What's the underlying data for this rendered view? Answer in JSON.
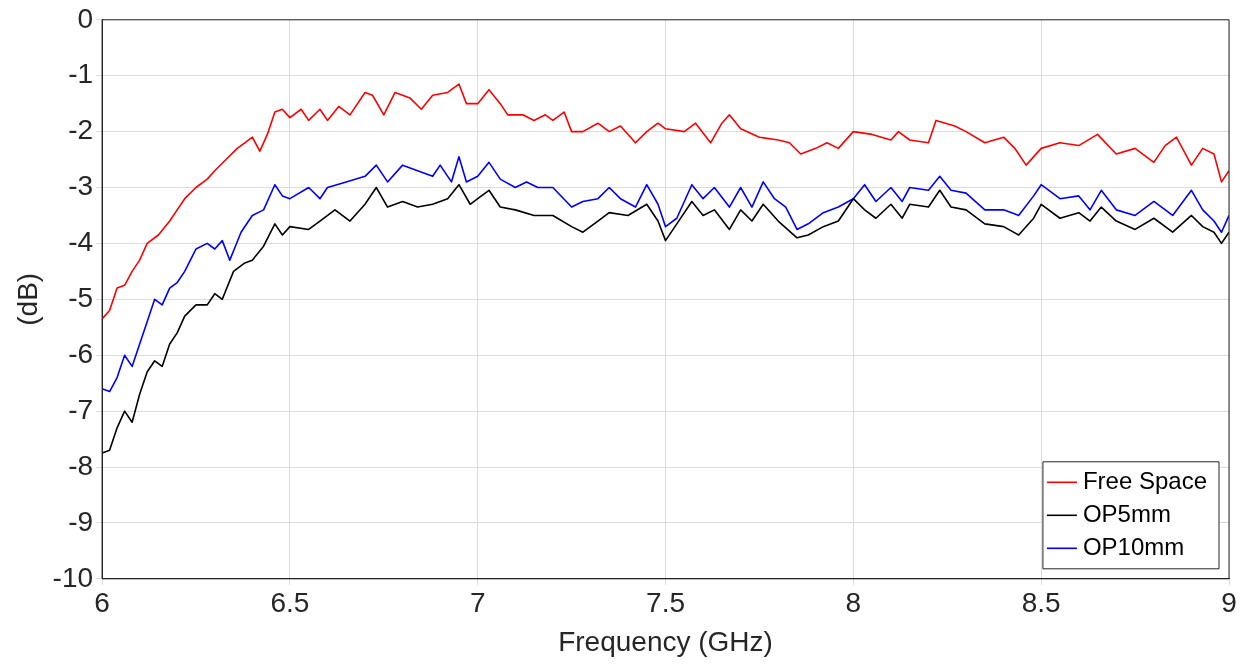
{
  "chart_data": {
    "type": "line",
    "xlabel": "Frequency (GHz)",
    "ylabel": "(dB)",
    "xlim": [
      6,
      9
    ],
    "xticks": [
      6,
      6.5,
      7,
      7.5,
      8,
      8.5,
      9
    ],
    "ylim": [
      -10,
      0
    ],
    "yticks": [
      -10,
      -9,
      -8,
      -7,
      -6,
      -5,
      -4,
      -3,
      -2,
      -1,
      0
    ],
    "grid": true,
    "legend": "bottom right",
    "marker": "none",
    "line_style": "solid",
    "series": [
      {
        "name": "Free Space",
        "color": "#ff0000",
        "x": [
          6.0,
          6.02,
          6.04,
          6.06,
          6.08,
          6.1,
          6.12,
          6.15,
          6.18,
          6.2,
          6.22,
          6.25,
          6.28,
          6.3,
          6.33,
          6.36,
          6.38,
          6.4,
          6.42,
          6.44,
          6.46,
          6.48,
          6.5,
          6.53,
          6.55,
          6.58,
          6.6,
          6.63,
          6.66,
          6.7,
          6.72,
          6.75,
          6.78,
          6.82,
          6.85,
          6.88,
          6.92,
          6.95,
          6.97,
          7.0,
          7.03,
          7.06,
          7.08,
          7.12,
          7.15,
          7.18,
          7.2,
          7.23,
          7.25,
          7.28,
          7.32,
          7.35,
          7.38,
          7.42,
          7.45,
          7.48,
          7.5,
          7.55,
          7.58,
          7.62,
          7.65,
          7.67,
          7.7,
          7.75,
          7.8,
          7.83,
          7.86,
          7.9,
          7.93,
          7.96,
          8.0,
          8.05,
          8.1,
          8.12,
          8.15,
          8.2,
          8.22,
          8.27,
          8.3,
          8.35,
          8.4,
          8.43,
          8.46,
          8.5,
          8.55,
          8.6,
          8.65,
          8.7,
          8.75,
          8.8,
          8.83,
          8.86,
          8.9,
          8.93,
          8.96,
          8.98,
          9.0
        ],
        "values": [
          -5.35,
          -5.2,
          -4.8,
          -4.75,
          -4.5,
          -4.3,
          -4.0,
          -3.85,
          -3.6,
          -3.4,
          -3.2,
          -3.0,
          -2.85,
          -2.7,
          -2.5,
          -2.3,
          -2.2,
          -2.1,
          -2.35,
          -2.05,
          -1.65,
          -1.6,
          -1.75,
          -1.6,
          -1.8,
          -1.6,
          -1.8,
          -1.55,
          -1.7,
          -1.3,
          -1.35,
          -1.7,
          -1.3,
          -1.4,
          -1.6,
          -1.35,
          -1.3,
          -1.15,
          -1.5,
          -1.5,
          -1.25,
          -1.5,
          -1.7,
          -1.7,
          -1.8,
          -1.7,
          -1.8,
          -1.65,
          -2.0,
          -2.0,
          -1.85,
          -2.0,
          -1.9,
          -2.2,
          -2.0,
          -1.85,
          -1.95,
          -2.0,
          -1.85,
          -2.2,
          -1.85,
          -1.7,
          -1.95,
          -2.1,
          -2.15,
          -2.2,
          -2.4,
          -2.3,
          -2.2,
          -2.3,
          -2.0,
          -2.05,
          -2.15,
          -2.0,
          -2.15,
          -2.2,
          -1.8,
          -1.9,
          -2.0,
          -2.2,
          -2.1,
          -2.3,
          -2.6,
          -2.3,
          -2.2,
          -2.25,
          -2.05,
          -2.4,
          -2.3,
          -2.55,
          -2.25,
          -2.1,
          -2.6,
          -2.3,
          -2.4,
          -2.9,
          -2.7
        ]
      },
      {
        "name": "OP5mm",
        "color": "#000000",
        "x": [
          6.0,
          6.02,
          6.04,
          6.06,
          6.08,
          6.1,
          6.12,
          6.14,
          6.16,
          6.18,
          6.2,
          6.22,
          6.25,
          6.28,
          6.3,
          6.32,
          6.35,
          6.38,
          6.4,
          6.43,
          6.46,
          6.48,
          6.5,
          6.55,
          6.58,
          6.62,
          6.66,
          6.7,
          6.73,
          6.76,
          6.8,
          6.84,
          6.88,
          6.92,
          6.95,
          6.98,
          7.0,
          7.03,
          7.06,
          7.1,
          7.15,
          7.2,
          7.25,
          7.28,
          7.32,
          7.35,
          7.4,
          7.45,
          7.48,
          7.5,
          7.53,
          7.57,
          7.6,
          7.63,
          7.67,
          7.7,
          7.73,
          7.76,
          7.8,
          7.85,
          7.88,
          7.92,
          7.96,
          8.0,
          8.03,
          8.06,
          8.1,
          8.13,
          8.15,
          8.2,
          8.23,
          8.26,
          8.3,
          8.35,
          8.4,
          8.44,
          8.48,
          8.5,
          8.55,
          8.6,
          8.63,
          8.66,
          8.7,
          8.75,
          8.8,
          8.85,
          8.9,
          8.93,
          8.96,
          8.98,
          9.0
        ],
        "values": [
          -7.75,
          -7.7,
          -7.3,
          -7.0,
          -7.2,
          -6.7,
          -6.3,
          -6.1,
          -6.2,
          -5.8,
          -5.6,
          -5.3,
          -5.1,
          -5.1,
          -4.9,
          -5.0,
          -4.5,
          -4.35,
          -4.3,
          -4.05,
          -3.65,
          -3.85,
          -3.7,
          -3.75,
          -3.6,
          -3.4,
          -3.6,
          -3.3,
          -3.0,
          -3.35,
          -3.25,
          -3.35,
          -3.3,
          -3.2,
          -2.95,
          -3.3,
          -3.2,
          -3.05,
          -3.35,
          -3.4,
          -3.5,
          -3.5,
          -3.7,
          -3.8,
          -3.6,
          -3.45,
          -3.5,
          -3.3,
          -3.6,
          -3.95,
          -3.65,
          -3.25,
          -3.5,
          -3.4,
          -3.75,
          -3.4,
          -3.6,
          -3.3,
          -3.6,
          -3.9,
          -3.85,
          -3.7,
          -3.6,
          -3.2,
          -3.4,
          -3.55,
          -3.3,
          -3.55,
          -3.3,
          -3.35,
          -3.05,
          -3.35,
          -3.4,
          -3.65,
          -3.7,
          -3.85,
          -3.55,
          -3.3,
          -3.55,
          -3.45,
          -3.6,
          -3.35,
          -3.6,
          -3.75,
          -3.55,
          -3.8,
          -3.5,
          -3.7,
          -3.8,
          -4.0,
          -3.8
        ]
      },
      {
        "name": "OP10mm",
        "color": "#0000ff",
        "x": [
          6.0,
          6.02,
          6.04,
          6.06,
          6.08,
          6.1,
          6.12,
          6.14,
          6.16,
          6.18,
          6.2,
          6.22,
          6.25,
          6.28,
          6.3,
          6.32,
          6.34,
          6.37,
          6.4,
          6.43,
          6.46,
          6.48,
          6.5,
          6.55,
          6.58,
          6.6,
          6.65,
          6.7,
          6.73,
          6.76,
          6.8,
          6.84,
          6.88,
          6.9,
          6.93,
          6.95,
          6.97,
          7.0,
          7.03,
          7.06,
          7.1,
          7.13,
          7.16,
          7.2,
          7.25,
          7.28,
          7.32,
          7.35,
          7.38,
          7.42,
          7.45,
          7.48,
          7.5,
          7.53,
          7.57,
          7.6,
          7.63,
          7.67,
          7.7,
          7.73,
          7.76,
          7.79,
          7.82,
          7.85,
          7.88,
          7.92,
          7.96,
          8.0,
          8.03,
          8.06,
          8.1,
          8.13,
          8.15,
          8.2,
          8.23,
          8.26,
          8.3,
          8.35,
          8.4,
          8.44,
          8.48,
          8.5,
          8.55,
          8.6,
          8.63,
          8.66,
          8.7,
          8.75,
          8.8,
          8.85,
          8.9,
          8.93,
          8.96,
          8.98,
          9.0
        ],
        "values": [
          -6.6,
          -6.65,
          -6.4,
          -6.0,
          -6.2,
          -5.8,
          -5.4,
          -5.0,
          -5.1,
          -4.8,
          -4.7,
          -4.5,
          -4.1,
          -4.0,
          -4.1,
          -3.95,
          -4.3,
          -3.8,
          -3.5,
          -3.4,
          -2.95,
          -3.15,
          -3.2,
          -3.0,
          -3.2,
          -3.0,
          -2.9,
          -2.8,
          -2.6,
          -2.9,
          -2.6,
          -2.7,
          -2.8,
          -2.6,
          -2.9,
          -2.45,
          -2.9,
          -2.8,
          -2.55,
          -2.85,
          -3.0,
          -2.9,
          -3.0,
          -3.0,
          -3.35,
          -3.25,
          -3.2,
          -3.0,
          -3.2,
          -3.35,
          -2.95,
          -3.3,
          -3.7,
          -3.55,
          -2.95,
          -3.2,
          -3.0,
          -3.35,
          -3.0,
          -3.35,
          -2.9,
          -3.2,
          -3.35,
          -3.75,
          -3.65,
          -3.45,
          -3.35,
          -3.2,
          -2.95,
          -3.25,
          -3.0,
          -3.25,
          -3.0,
          -3.05,
          -2.8,
          -3.05,
          -3.1,
          -3.4,
          -3.4,
          -3.5,
          -3.15,
          -2.95,
          -3.2,
          -3.15,
          -3.4,
          -3.05,
          -3.4,
          -3.5,
          -3.25,
          -3.5,
          -3.05,
          -3.4,
          -3.6,
          -3.8,
          -3.5
        ]
      }
    ]
  }
}
